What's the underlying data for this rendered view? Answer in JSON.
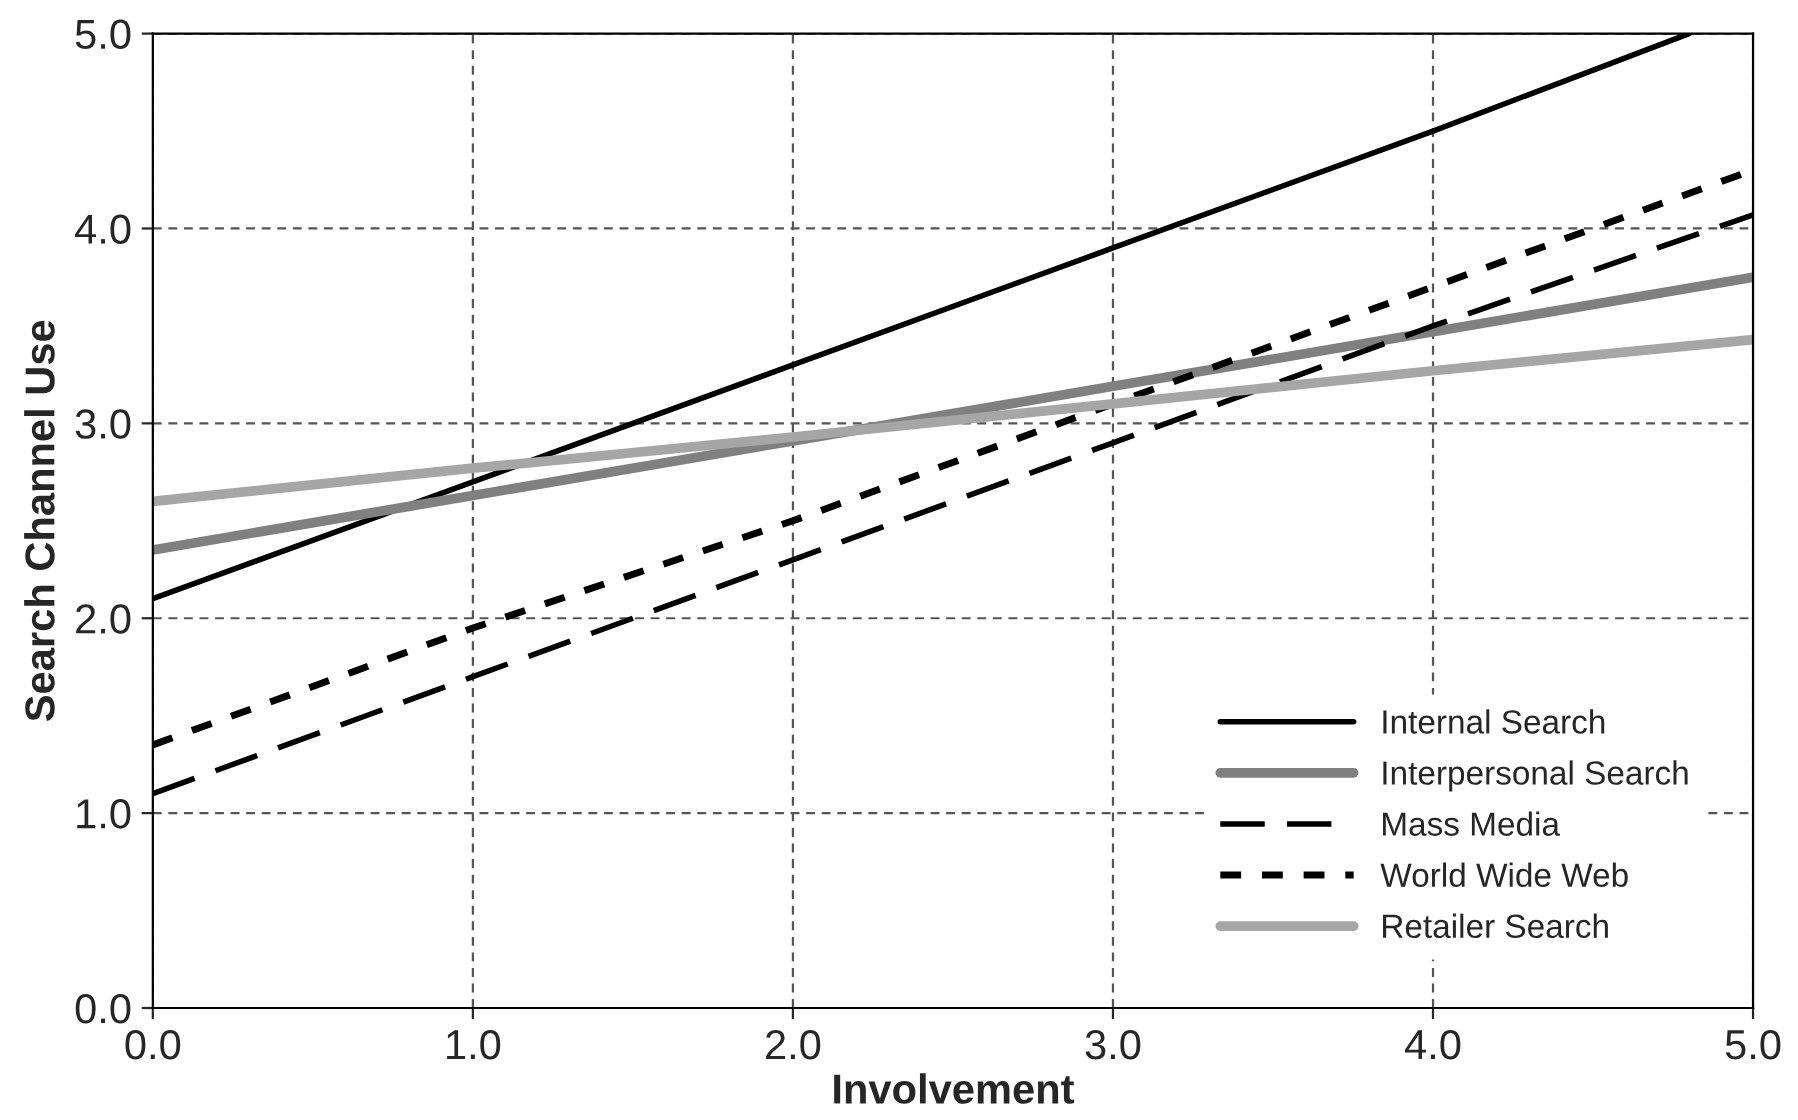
{
  "chart_data": {
    "type": "line",
    "xlabel": "Involvement",
    "ylabel": "Search Channel Use",
    "x": [
      0,
      1,
      2,
      3,
      4,
      5
    ],
    "series": [
      {
        "name": "Internal Search",
        "color": "#000000",
        "line_style": "solid",
        "x": [
          0,
          1,
          2,
          3,
          4,
          4.8
        ],
        "values": [
          2.1,
          2.7,
          3.3,
          3.9,
          4.5,
          5.0
        ]
      },
      {
        "name": "Interpersonal Search",
        "color": "#808080",
        "line_style": "solid",
        "values": [
          2.35,
          2.63,
          2.91,
          3.19,
          3.47,
          3.75
        ]
      },
      {
        "name": "Mass Media",
        "color": "#000000",
        "line_style": "dashed",
        "values": [
          1.1,
          1.7,
          2.3,
          2.9,
          3.5,
          4.07
        ]
      },
      {
        "name": "World Wide Web",
        "color": "#000000",
        "line_style": "dotted",
        "values": [
          1.35,
          1.95,
          2.5,
          3.1,
          3.7,
          4.3
        ]
      },
      {
        "name": "Retailer Search",
        "color": "#a6a6a6",
        "line_style": "solid",
        "values": [
          2.6,
          2.77,
          2.93,
          3.1,
          3.27,
          3.43
        ]
      }
    ],
    "xlim": [
      0,
      5
    ],
    "ylim": [
      0,
      5
    ],
    "xticks": [
      {
        "value": 0,
        "label": "0.0"
      },
      {
        "value": 1,
        "label": "1.0"
      },
      {
        "value": 2,
        "label": "2.0"
      },
      {
        "value": 3,
        "label": "3.0"
      },
      {
        "value": 4,
        "label": "4.0"
      },
      {
        "value": 5,
        "label": "5.0"
      }
    ],
    "yticks": [
      {
        "value": 0,
        "label": "0.0"
      },
      {
        "value": 1,
        "label": "1.0"
      },
      {
        "value": 2,
        "label": "2.0"
      },
      {
        "value": 3,
        "label": "3.0"
      },
      {
        "value": 4,
        "label": "4.0"
      },
      {
        "value": 5,
        "label": "5.0"
      }
    ],
    "grid": true,
    "legend": "bottom right",
    "marker": "none"
  }
}
